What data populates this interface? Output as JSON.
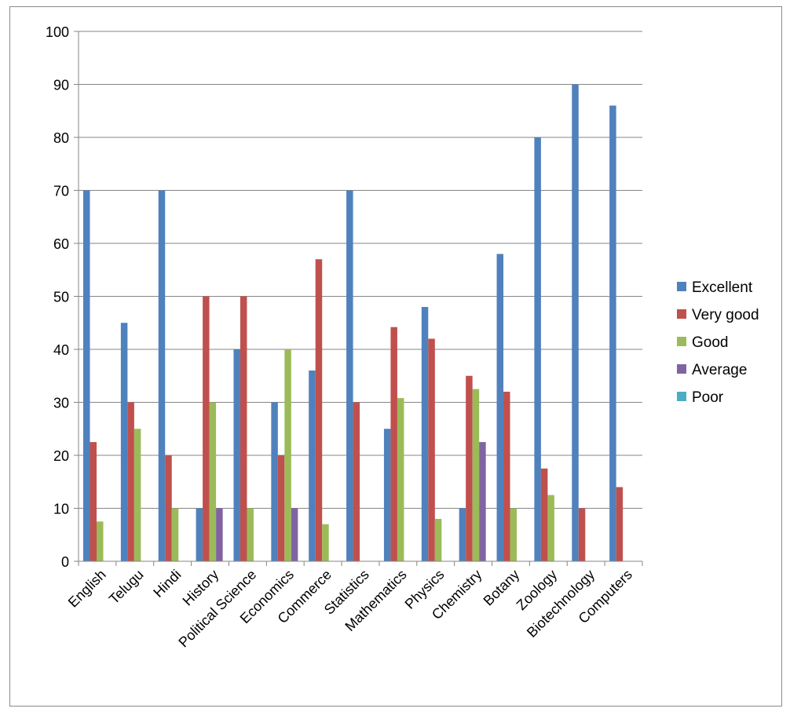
{
  "chart_data": {
    "type": "bar",
    "title": "",
    "xlabel": "",
    "ylabel": "",
    "ylim": [
      0,
      100
    ],
    "yticks": [
      0,
      10,
      20,
      30,
      40,
      50,
      60,
      70,
      80,
      90,
      100
    ],
    "grid": true,
    "legend_position": "right",
    "categories": [
      "English",
      "Telugu",
      "Hindi",
      "History",
      "Political Science",
      "Economics",
      "Commerce",
      "Statistics",
      "Mathematics",
      "Physics",
      "Chemistry",
      "Botany",
      "Zoology",
      "Biotechnology",
      "Computers"
    ],
    "series": [
      {
        "name": "Excellent",
        "color": "#4F81BD",
        "values": [
          70,
          45,
          70,
          10,
          40,
          30,
          36,
          70,
          25,
          48,
          10,
          58,
          80,
          90,
          86
        ]
      },
      {
        "name": "Very good",
        "color": "#C0504D",
        "values": [
          22.5,
          30,
          20,
          50,
          50,
          20,
          57,
          30,
          44.2,
          42,
          35,
          32,
          17.5,
          10,
          14
        ]
      },
      {
        "name": "Good",
        "color": "#9BBB59",
        "values": [
          7.5,
          25,
          10,
          30,
          10,
          40,
          7,
          0,
          30.8,
          8,
          32.5,
          10,
          12.5,
          0,
          0
        ]
      },
      {
        "name": "Average",
        "color": "#8064A2",
        "values": [
          0,
          0,
          0,
          10,
          0,
          10,
          0,
          0,
          0,
          0,
          22.5,
          0,
          0,
          0,
          0
        ]
      },
      {
        "name": "Poor",
        "color": "#4BACC6",
        "values": [
          0,
          0,
          0,
          0,
          0,
          0,
          0,
          0,
          0,
          0,
          0,
          0,
          0,
          0,
          0
        ]
      }
    ]
  }
}
